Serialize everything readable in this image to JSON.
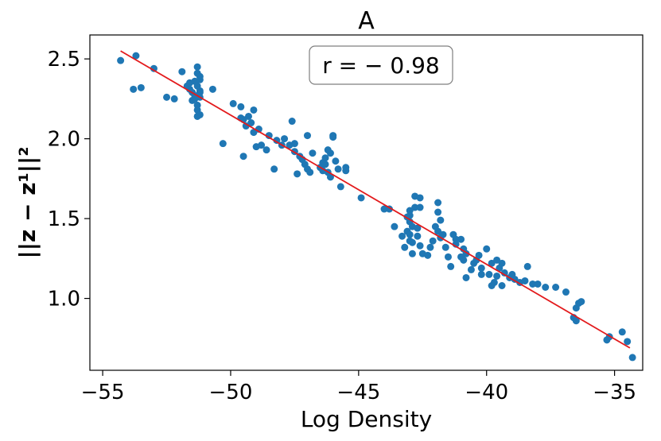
{
  "chart_data": {
    "type": "scatter",
    "title": "A",
    "xlabel": "Log Density",
    "ylabel": "||z − z¹||²",
    "xlim": [
      -55.5,
      -33.9
    ],
    "ylim": [
      0.55,
      2.65
    ],
    "x_ticks": [
      -55,
      -50,
      -45,
      -40,
      -35
    ],
    "x_tick_labels": [
      "−55",
      "−50",
      "−45",
      "−40",
      "−35"
    ],
    "y_ticks": [
      1.0,
      1.5,
      2.0,
      2.5
    ],
    "y_tick_labels": [
      "1.0",
      "1.5",
      "2.0",
      "2.5"
    ],
    "annotation": "r = − 0.98",
    "point_color": "#1f77b4",
    "line_color": "#e31a1c",
    "fit_line": {
      "x": [
        -54.3,
        -34.4
      ],
      "y": [
        2.55,
        0.69
      ]
    },
    "points": [
      [
        -54.3,
        2.49
      ],
      [
        -53.7,
        2.52
      ],
      [
        -53.5,
        2.32
      ],
      [
        -53.8,
        2.31
      ],
      [
        -53.0,
        2.44
      ],
      [
        -52.5,
        2.26
      ],
      [
        -52.2,
        2.25
      ],
      [
        -51.9,
        2.42
      ],
      [
        -51.7,
        2.33
      ],
      [
        -51.6,
        2.35
      ],
      [
        -51.6,
        2.31
      ],
      [
        -51.5,
        2.29
      ],
      [
        -51.5,
        2.24
      ],
      [
        -51.4,
        2.27
      ],
      [
        -51.4,
        2.36
      ],
      [
        -51.3,
        2.21
      ],
      [
        -51.3,
        2.18
      ],
      [
        -51.3,
        2.41
      ],
      [
        -51.3,
        2.45
      ],
      [
        -51.2,
        2.3
      ],
      [
        -51.2,
        2.15
      ],
      [
        -51.2,
        2.37
      ],
      [
        -51.2,
        2.26
      ],
      [
        -51.3,
        2.33
      ],
      [
        -51.2,
        2.29
      ],
      [
        -51.4,
        2.25
      ],
      [
        -51.3,
        2.14
      ],
      [
        -51.2,
        2.39
      ],
      [
        -50.7,
        2.31
      ],
      [
        -50.3,
        1.97
      ],
      [
        -49.9,
        2.22
      ],
      [
        -49.6,
        2.2
      ],
      [
        -49.6,
        2.13
      ],
      [
        -49.5,
        2.12
      ],
      [
        -49.5,
        1.89
      ],
      [
        -49.4,
        2.08
      ],
      [
        -49.3,
        2.14
      ],
      [
        -49.2,
        2.1
      ],
      [
        -49.1,
        2.04
      ],
      [
        -49.0,
        1.95
      ],
      [
        -49.1,
        2.18
      ],
      [
        -48.9,
        2.06
      ],
      [
        -48.8,
        1.96
      ],
      [
        -48.6,
        1.93
      ],
      [
        -48.5,
        2.02
      ],
      [
        -48.2,
        1.99
      ],
      [
        -48.3,
        1.81
      ],
      [
        -48.0,
        1.96
      ],
      [
        -47.9,
        2.0
      ],
      [
        -47.7,
        1.96
      ],
      [
        -47.6,
        2.11
      ],
      [
        -47.5,
        1.97
      ],
      [
        -47.5,
        1.92
      ],
      [
        -47.4,
        1.78
      ],
      [
        -47.3,
        1.89
      ],
      [
        -47.2,
        1.87
      ],
      [
        -47.1,
        1.84
      ],
      [
        -47.0,
        1.81
      ],
      [
        -47.0,
        2.02
      ],
      [
        -46.9,
        1.79
      ],
      [
        -46.8,
        1.91
      ],
      [
        -46.5,
        1.82
      ],
      [
        -46.4,
        1.85
      ],
      [
        -46.3,
        1.88
      ],
      [
        -46.3,
        1.84
      ],
      [
        -46.2,
        1.79
      ],
      [
        -46.1,
        1.76
      ],
      [
        -46.1,
        1.91
      ],
      [
        -46.0,
        2.02
      ],
      [
        -46.0,
        2.01
      ],
      [
        -45.8,
        1.81
      ],
      [
        -45.5,
        1.82
      ],
      [
        -45.9,
        1.86
      ],
      [
        -46.2,
        1.93
      ],
      [
        -46.4,
        1.8
      ],
      [
        -45.7,
        1.7
      ],
      [
        -45.5,
        1.8
      ],
      [
        -44.9,
        1.63
      ],
      [
        -44.0,
        1.56
      ],
      [
        -43.8,
        1.56
      ],
      [
        -43.6,
        1.45
      ],
      [
        -43.3,
        1.39
      ],
      [
        -43.2,
        1.32
      ],
      [
        -43.1,
        1.51
      ],
      [
        -43.0,
        1.55
      ],
      [
        -43.0,
        1.48
      ],
      [
        -42.9,
        1.45
      ],
      [
        -43.1,
        1.42
      ],
      [
        -43.0,
        1.36
      ],
      [
        -42.9,
        1.28
      ],
      [
        -43.0,
        1.4
      ],
      [
        -42.8,
        1.64
      ],
      [
        -42.6,
        1.63
      ],
      [
        -42.8,
        1.57
      ],
      [
        -43.0,
        1.52
      ],
      [
        -42.7,
        1.44
      ],
      [
        -42.7,
        1.39
      ],
      [
        -42.6,
        1.33
      ],
      [
        -42.5,
        1.28
      ],
      [
        -42.6,
        1.57
      ],
      [
        -42.9,
        1.35
      ],
      [
        -42.3,
        1.27
      ],
      [
        -42.1,
        1.36
      ],
      [
        -42.0,
        1.45
      ],
      [
        -41.9,
        1.42
      ],
      [
        -41.9,
        1.6
      ],
      [
        -41.9,
        1.54
      ],
      [
        -41.8,
        1.38
      ],
      [
        -41.8,
        1.49
      ],
      [
        -41.6,
        1.32
      ],
      [
        -41.5,
        1.26
      ],
      [
        -41.3,
        1.4
      ],
      [
        -41.2,
        1.37
      ],
      [
        -41.0,
        1.37
      ],
      [
        -41.2,
        1.34
      ],
      [
        -41.4,
        1.2
      ],
      [
        -41.0,
        1.26
      ],
      [
        -40.9,
        1.31
      ],
      [
        -40.6,
        1.18
      ],
      [
        -40.8,
        1.28
      ],
      [
        -40.5,
        1.22
      ],
      [
        -40.4,
        1.24
      ],
      [
        -40.3,
        1.27
      ],
      [
        -40.2,
        1.19
      ],
      [
        -40.0,
        1.31
      ],
      [
        -39.9,
        1.15
      ],
      [
        -39.8,
        1.22
      ],
      [
        -39.7,
        1.1
      ],
      [
        -39.6,
        1.14
      ],
      [
        -39.5,
        1.19
      ],
      [
        -39.4,
        1.08
      ],
      [
        -39.4,
        1.22
      ],
      [
        -39.3,
        1.16
      ],
      [
        -39.1,
        1.13
      ],
      [
        -38.9,
        1.12
      ],
      [
        -38.7,
        1.1
      ],
      [
        -38.5,
        1.11
      ],
      [
        -38.4,
        1.2
      ],
      [
        -38.2,
        1.09
      ],
      [
        -38.0,
        1.09
      ],
      [
        -37.7,
        1.07
      ],
      [
        -37.3,
        1.07
      ],
      [
        -36.9,
        1.04
      ],
      [
        -36.6,
        0.88
      ],
      [
        -36.5,
        0.94
      ],
      [
        -36.4,
        0.97
      ],
      [
        -36.3,
        0.98
      ],
      [
        -36.5,
        0.86
      ],
      [
        -35.3,
        0.74
      ],
      [
        -35.2,
        0.76
      ],
      [
        -34.7,
        0.79
      ],
      [
        -34.5,
        0.73
      ],
      [
        -34.3,
        0.63
      ],
      [
        -40.9,
        1.24
      ],
      [
        -40.8,
        1.13
      ],
      [
        -41.7,
        1.4
      ],
      [
        -39.8,
        1.08
      ],
      [
        -39.0,
        1.15
      ],
      [
        -42.2,
        1.32
      ],
      [
        -40.2,
        1.15
      ],
      [
        -39.6,
        1.24
      ]
    ]
  }
}
